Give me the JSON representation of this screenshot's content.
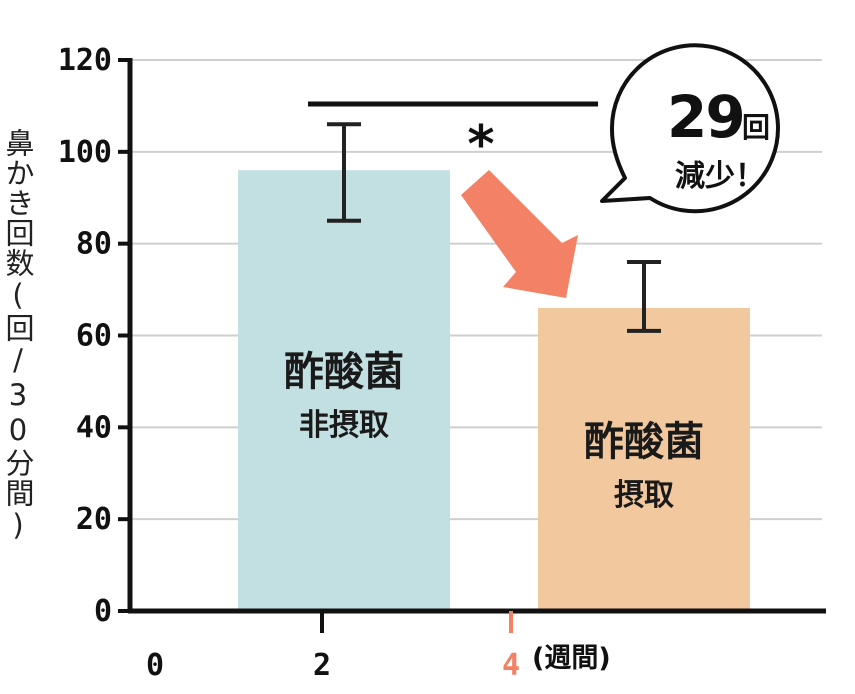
{
  "chart_data": {
    "type": "bar",
    "title": "",
    "ylabel": "鼻かき回数(回/30分間)",
    "xlabel": "",
    "ylim": [
      0,
      120
    ],
    "yticks": [
      "0",
      "20",
      "40",
      "60",
      "80",
      "100",
      "120"
    ],
    "xticks": [
      "0",
      "2",
      "4"
    ],
    "xunit": "(週間)",
    "grid": true,
    "bars": [
      {
        "label_line1": "酢酸菌",
        "label_line2": "非摂取",
        "value": 96,
        "error_low": 85,
        "error_high": 106,
        "color": "#c2dfe2"
      },
      {
        "label_line1": "酢酸菌",
        "label_line2": "摂取",
        "value": 66,
        "error_low": 61,
        "error_high": 76,
        "color": "#f2c89e"
      }
    ],
    "significance": "*",
    "callout": {
      "number": "29",
      "unit": "回",
      "text": "減少！"
    },
    "accent_color": "#f28165"
  }
}
